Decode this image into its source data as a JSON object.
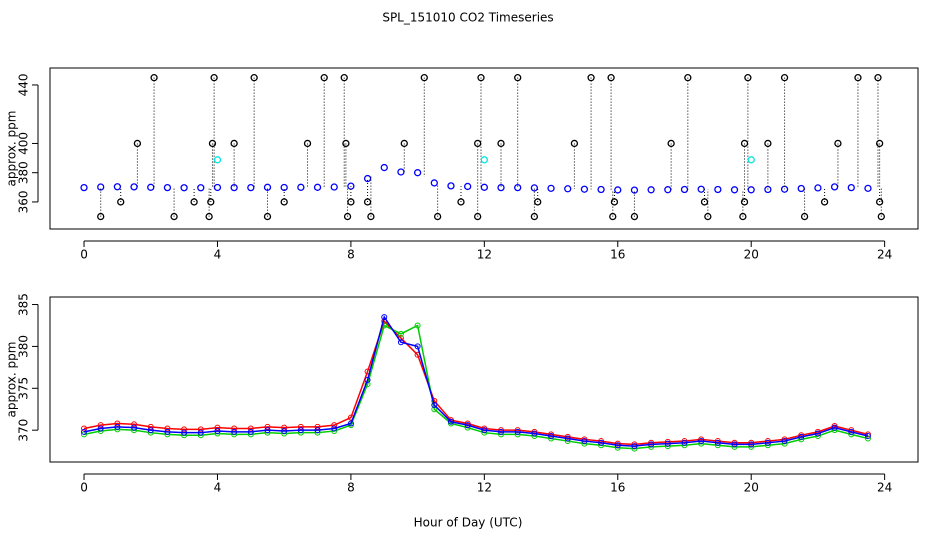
{
  "chart_data": [
    {
      "type": "scatter",
      "title": "SPL_151010  CO2 Timeseries",
      "ylabel": "approx. ppm",
      "xlim": [
        -1.02,
        25.0
      ],
      "ylim": [
        341.5,
        451.6
      ],
      "xticks": [
        0,
        4,
        8,
        12,
        16,
        20,
        24
      ],
      "yticks": [
        360,
        380,
        400,
        440
      ],
      "series": [
        {
          "color": "#0000ff",
          "x": [
            0,
            0.5,
            1,
            1.5,
            2,
            2.5,
            3,
            3.5,
            4,
            4.5,
            5,
            5.5,
            6,
            6.5,
            7,
            7.5,
            8,
            8.5,
            9,
            9.5,
            10,
            10.5,
            11,
            11.5,
            12,
            12.5,
            13,
            13.5,
            14,
            14.5,
            15,
            15.5,
            16,
            16.5,
            17,
            17.5,
            18,
            18.5,
            19,
            19.5,
            20,
            20.5,
            21,
            21.5,
            22,
            22.5,
            23,
            23.5
          ],
          "values": [
            369.8,
            370.2,
            370.4,
            370.3,
            370.0,
            369.8,
            369.7,
            369.7,
            369.9,
            369.8,
            369.8,
            370.0,
            369.9,
            370.0,
            370.0,
            370.2,
            370.8,
            376.0,
            383.5,
            380.5,
            380.0,
            373.0,
            371.0,
            370.6,
            370.0,
            369.8,
            369.8,
            369.6,
            369.3,
            369.0,
            368.7,
            368.5,
            368.2,
            368.1,
            368.3,
            368.4,
            368.5,
            368.7,
            368.5,
            368.3,
            368.3,
            368.5,
            368.7,
            369.2,
            369.6,
            370.3,
            369.8,
            369.3
          ]
        },
        {
          "color": "#000000",
          "x": [
            2.1,
            3.9,
            5.1,
            7.2,
            7.8,
            10.2,
            11.9,
            13.0,
            15.2,
            15.8,
            18.1,
            19.9,
            21.0,
            23.2,
            23.8,
            1.6,
            3.85,
            4.5,
            6.7,
            7.85,
            9.6,
            11.8,
            12.5,
            14.7,
            17.6,
            19.8,
            20.5,
            22.6,
            23.85,
            1.1,
            3.3,
            3.8,
            6.0,
            8.0,
            8.5,
            11.3,
            13.6,
            15.9,
            18.6,
            19.8,
            22.2,
            23.85,
            0.5,
            2.7,
            3.75,
            5.5,
            7.9,
            8.6,
            10.6,
            11.8,
            13.5,
            15.85,
            16.5,
            18.7,
            19.75,
            21.6,
            23.9
          ],
          "values": [
            445,
            445,
            445,
            445,
            445,
            445,
            445,
            445,
            445,
            445,
            445,
            445,
            445,
            445,
            445,
            400,
            400,
            400,
            400,
            400,
            400,
            400,
            400,
            400,
            400,
            400,
            400,
            400,
            400,
            360,
            360,
            360,
            360,
            360,
            360,
            360,
            360,
            360,
            360,
            360,
            360,
            360,
            350,
            350,
            350,
            350,
            350,
            350,
            350,
            350,
            350,
            350,
            350,
            350,
            350,
            350,
            350
          ]
        },
        {
          "color": "#00e5e5",
          "x": [
            4,
            12,
            20
          ],
          "values": [
            388.8,
            388.8,
            388.8
          ]
        }
      ]
    },
    {
      "type": "line",
      "ylabel": "approx. ppm",
      "xlabel": "Hour of Day (UTC)",
      "xlim": [
        -1.02,
        25.0
      ],
      "ylim": [
        366.2,
        385.9
      ],
      "xticks": [
        0,
        4,
        8,
        12,
        16,
        20,
        24
      ],
      "yticks": [
        370,
        375,
        380,
        385
      ],
      "x": [
        0,
        0.5,
        1,
        1.5,
        2,
        2.5,
        3,
        3.5,
        4,
        4.5,
        5,
        5.5,
        6,
        6.5,
        7,
        7.5,
        8,
        8.5,
        9,
        9.5,
        10,
        10.5,
        11,
        11.5,
        12,
        12.5,
        13,
        13.5,
        14,
        14.5,
        15,
        15.5,
        16,
        16.5,
        17,
        17.5,
        18,
        18.5,
        19,
        19.5,
        20,
        20.5,
        21,
        21.5,
        22,
        22.5,
        23,
        23.5
      ],
      "series": [
        {
          "color": "#ff0000",
          "values": [
            370.2,
            370.6,
            370.8,
            370.7,
            370.4,
            370.2,
            370.1,
            370.1,
            370.3,
            370.2,
            370.2,
            370.4,
            370.3,
            370.4,
            370.4,
            370.6,
            371.5,
            377.0,
            383.0,
            381.0,
            379.0,
            373.5,
            371.2,
            370.8,
            370.2,
            370.0,
            370.0,
            369.8,
            369.5,
            369.2,
            368.9,
            368.7,
            368.4,
            368.3,
            368.5,
            368.6,
            368.7,
            368.9,
            368.7,
            368.5,
            368.5,
            368.7,
            368.9,
            369.4,
            369.8,
            370.5,
            370.0,
            369.5
          ]
        },
        {
          "color": "#00cd00",
          "values": [
            369.5,
            369.9,
            370.1,
            370.0,
            369.7,
            369.5,
            369.4,
            369.4,
            369.6,
            369.5,
            369.5,
            369.7,
            369.6,
            369.7,
            369.7,
            369.9,
            370.6,
            375.5,
            382.5,
            381.5,
            382.5,
            372.5,
            370.8,
            370.3,
            369.7,
            369.5,
            369.5,
            369.3,
            369.0,
            368.7,
            368.4,
            368.2,
            367.9,
            367.8,
            368.0,
            368.1,
            368.2,
            368.4,
            368.2,
            368.0,
            368.0,
            368.2,
            368.4,
            368.9,
            369.3,
            370.0,
            369.5,
            369.0
          ]
        },
        {
          "color": "#0000ff",
          "values": [
            369.8,
            370.2,
            370.4,
            370.3,
            370.0,
            369.8,
            369.7,
            369.7,
            369.9,
            369.8,
            369.8,
            370.0,
            369.9,
            370.0,
            370.0,
            370.2,
            370.8,
            376.0,
            383.5,
            380.5,
            380.0,
            373.0,
            371.0,
            370.6,
            370.0,
            369.8,
            369.8,
            369.6,
            369.3,
            369.0,
            368.7,
            368.5,
            368.2,
            368.1,
            368.3,
            368.4,
            368.5,
            368.7,
            368.5,
            368.3,
            368.3,
            368.5,
            368.7,
            369.2,
            369.6,
            370.3,
            369.8,
            369.3
          ]
        }
      ]
    }
  ]
}
